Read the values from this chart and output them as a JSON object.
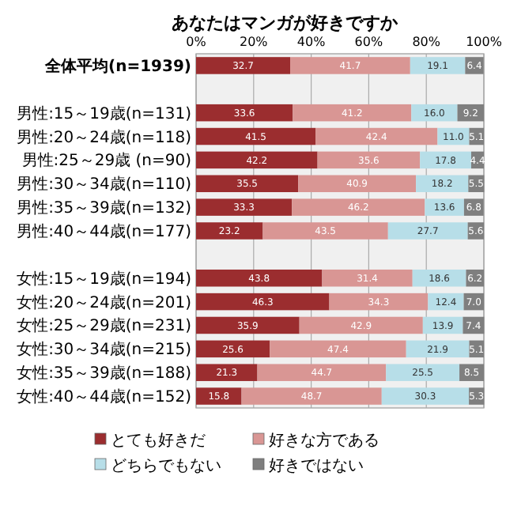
{
  "chart_data": {
    "type": "bar",
    "title": "あなたはマンガが好きですか",
    "orientation": "horizontal",
    "stacked": true,
    "grid": "x",
    "legend": "bottom",
    "categories": [
      "全体平均(n=1939)",
      null,
      "男性:15～19歳(n=131)",
      "男性:20～24歳(n=118)",
      "男性:25～29歳 (n=90)",
      "男性:30～34歳(n=110)",
      "男性:35～39歳(n=132)",
      "男性:40～44歳(n=177)",
      null,
      "女性:15～19歳(n=194)",
      "女性:20～24歳(n=201)",
      "女性:25～29歳(n=231)",
      "女性:30～34歳(n=215)",
      "女性:35～39歳(n=188)",
      "女性:40～44歳(n=152)"
    ],
    "xlim": [
      0,
      100
    ],
    "xticks": [
      {
        "value": 0,
        "label": "0%"
      },
      {
        "value": 20,
        "label": "20%"
      },
      {
        "value": 40,
        "label": "40%"
      },
      {
        "value": 60,
        "label": "60%"
      },
      {
        "value": 80,
        "label": "80%"
      },
      {
        "value": 100,
        "label": "100%"
      }
    ],
    "series": [
      {
        "name": "とても好きだ",
        "color": "#9b2d2f",
        "values": [
          32.7,
          null,
          33.6,
          41.5,
          42.2,
          35.5,
          33.3,
          23.2,
          null,
          43.8,
          46.3,
          35.9,
          25.6,
          21.3,
          15.8
        ],
        "value_labels": [
          "32.7",
          null,
          "33.6",
          "41.5",
          "42.2",
          "35.5",
          "33.3",
          "23.2",
          null,
          "43.8",
          "46.3",
          "35.9",
          "25.6",
          "21.3",
          "15.8"
        ]
      },
      {
        "name": "好きな方である",
        "color": "#d99694",
        "values": [
          41.7,
          null,
          41.2,
          42.4,
          35.6,
          40.9,
          46.2,
          43.5,
          null,
          31.4,
          34.3,
          42.9,
          47.4,
          44.7,
          48.7
        ],
        "value_labels": [
          "41.7",
          null,
          "41.2",
          "42.4",
          "35.6",
          "40.9",
          "46.2",
          "43.5",
          null,
          "31.4",
          "34.3",
          "42.9",
          "47.4",
          "44.7",
          "48.7"
        ]
      },
      {
        "name": "どちらでもない",
        "color": "#b7dee8",
        "values": [
          19.1,
          null,
          16.0,
          11.0,
          17.8,
          18.2,
          13.6,
          27.7,
          null,
          18.6,
          12.4,
          13.9,
          21.9,
          25.5,
          30.3
        ],
        "value_labels": [
          "19.1",
          null,
          "16.0",
          "11.0",
          "17.8",
          "18.2",
          "13.6",
          "27.7",
          null,
          "18.6",
          "12.4",
          "13.9",
          "21.9",
          "25.5",
          "30.3"
        ]
      },
      {
        "name": "好きではない",
        "color": "#7f7f7f",
        "values": [
          6.4,
          null,
          9.2,
          5.1,
          4.4,
          5.5,
          6.8,
          5.6,
          null,
          6.2,
          7.0,
          7.4,
          5.1,
          8.5,
          5.3
        ],
        "value_labels": [
          "6.4",
          null,
          "9.2",
          "5.1",
          "4.4",
          "5.5",
          "6.8",
          "5.6",
          null,
          "6.2",
          "7.0",
          "7.4",
          "5.1",
          "8.5",
          "5.3"
        ]
      }
    ]
  }
}
